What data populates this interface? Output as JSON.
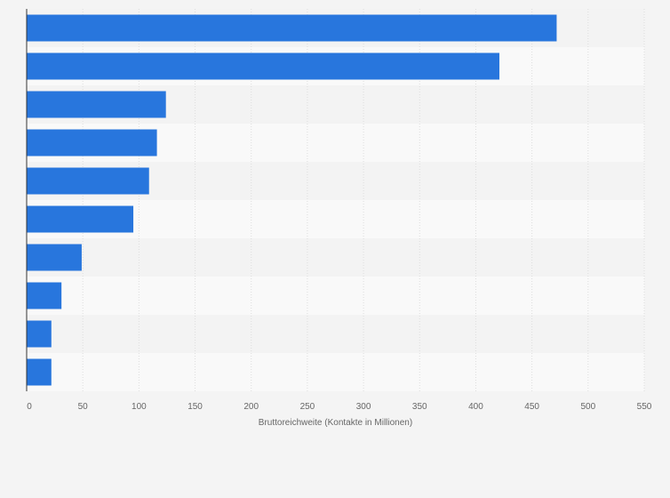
{
  "chart_data": {
    "type": "bar",
    "orientation": "horizontal",
    "title": "",
    "xlabel": "Bruttoreichweite (Kontakte in Millionen)",
    "ylabel": "",
    "xlim": [
      0,
      550
    ],
    "xticks": [
      0,
      50,
      100,
      150,
      200,
      250,
      300,
      350,
      400,
      450,
      500,
      550
    ],
    "xtick_labels": [
      "0",
      "50",
      "100",
      "150",
      "200",
      "250",
      "300",
      "350",
      "400",
      "450",
      "500",
      "550"
    ],
    "categories": [
      "",
      "",
      "",
      "",
      "",
      "",
      "",
      "",
      "",
      ""
    ],
    "values": [
      472,
      421,
      124,
      116,
      109,
      95,
      49,
      31,
      22,
      22
    ],
    "grid": true,
    "legend": "none",
    "colors": {
      "bar": "#2876dd",
      "background": "#f4f4f4",
      "band_light": "#f9f9f9",
      "band_dark": "#f3f3f3",
      "grid": "#dddddd",
      "axis": "#333333",
      "text": "#666666"
    }
  }
}
